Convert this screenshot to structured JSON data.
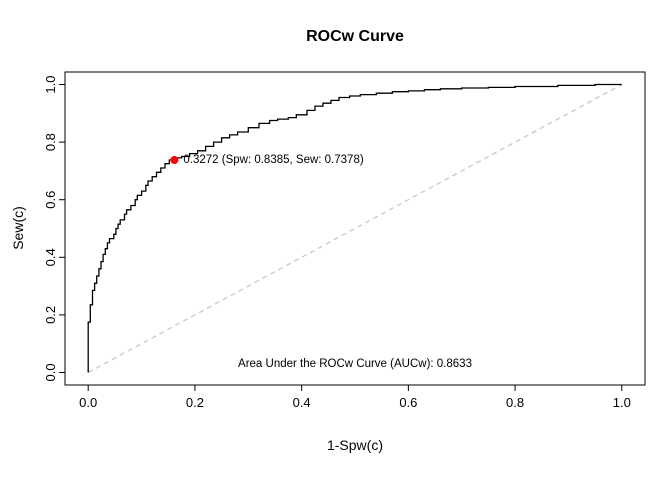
{
  "chart_data": {
    "type": "line",
    "subtype": "roc-step-curve",
    "title": "ROCw Curve",
    "xlabel": "1-Spw(c)",
    "ylabel": "Sew(c)",
    "xlim": [
      0,
      1
    ],
    "ylim": [
      0,
      1
    ],
    "grid": false,
    "legend": "none",
    "x_tick_labels": [
      "0.0",
      "0.2",
      "0.4",
      "0.6",
      "0.8",
      "1.0"
    ],
    "x_tick_values": [
      0,
      0.2,
      0.4,
      0.6,
      0.8,
      1.0
    ],
    "y_tick_labels": [
      "0.0",
      "0.2",
      "0.4",
      "0.6",
      "0.8",
      "1.0"
    ],
    "y_tick_values": [
      0,
      0.2,
      0.4,
      0.6,
      0.8,
      1.0
    ],
    "curve": {
      "color": "#000000",
      "step": true,
      "points": [
        [
          0.0,
          0.0
        ],
        [
          0.0,
          0.145
        ],
        [
          0.004,
          0.175
        ],
        [
          0.004,
          0.21
        ],
        [
          0.008,
          0.235
        ],
        [
          0.008,
          0.26
        ],
        [
          0.012,
          0.285
        ],
        [
          0.016,
          0.31
        ],
        [
          0.02,
          0.335
        ],
        [
          0.024,
          0.36
        ],
        [
          0.028,
          0.385
        ],
        [
          0.032,
          0.41
        ],
        [
          0.036,
          0.43
        ],
        [
          0.04,
          0.45
        ],
        [
          0.048,
          0.465
        ],
        [
          0.052,
          0.48
        ],
        [
          0.056,
          0.5
        ],
        [
          0.06,
          0.515
        ],
        [
          0.068,
          0.53
        ],
        [
          0.072,
          0.55
        ],
        [
          0.08,
          0.565
        ],
        [
          0.088,
          0.58
        ],
        [
          0.092,
          0.6
        ],
        [
          0.1,
          0.615
        ],
        [
          0.108,
          0.63
        ],
        [
          0.112,
          0.65
        ],
        [
          0.12,
          0.665
        ],
        [
          0.128,
          0.68
        ],
        [
          0.136,
          0.695
        ],
        [
          0.144,
          0.71
        ],
        [
          0.152,
          0.725
        ],
        [
          0.1615,
          0.7378
        ],
        [
          0.175,
          0.745
        ],
        [
          0.19,
          0.75
        ],
        [
          0.205,
          0.76
        ],
        [
          0.22,
          0.77
        ],
        [
          0.235,
          0.785
        ],
        [
          0.25,
          0.8
        ],
        [
          0.265,
          0.815
        ],
        [
          0.28,
          0.825
        ],
        [
          0.3,
          0.835
        ],
        [
          0.32,
          0.85
        ],
        [
          0.34,
          0.865
        ],
        [
          0.355,
          0.875
        ],
        [
          0.375,
          0.88
        ],
        [
          0.39,
          0.885
        ],
        [
          0.41,
          0.895
        ],
        [
          0.425,
          0.91
        ],
        [
          0.44,
          0.925
        ],
        [
          0.455,
          0.935
        ],
        [
          0.47,
          0.945
        ],
        [
          0.49,
          0.955
        ],
        [
          0.51,
          0.96
        ],
        [
          0.54,
          0.965
        ],
        [
          0.57,
          0.97
        ],
        [
          0.6,
          0.975
        ],
        [
          0.63,
          0.978
        ],
        [
          0.66,
          0.982
        ],
        [
          0.7,
          0.985
        ],
        [
          0.75,
          0.988
        ],
        [
          0.8,
          0.99
        ],
        [
          0.88,
          0.993
        ],
        [
          0.95,
          0.997
        ],
        [
          0.97,
          1.0
        ],
        [
          1.0,
          1.0
        ]
      ]
    },
    "reference_line": {
      "from": [
        0,
        0
      ],
      "to": [
        1,
        1
      ],
      "style": "dashed",
      "color": "#c8c8c8"
    },
    "marker": {
      "x": 0.1615,
      "y": 0.7378,
      "color": "#ff0000",
      "label": "0.3272 (Spw: 0.8385, Sew: 0.7378)",
      "cutoff": 0.3272,
      "spw": 0.8385,
      "sew": 0.7378
    },
    "annotations": {
      "auc_text": "Area Under the ROCw Curve (AUCw): 0.8633",
      "auc_value": 0.8633,
      "auc_x": 0.5,
      "auc_y": 0.03
    }
  }
}
